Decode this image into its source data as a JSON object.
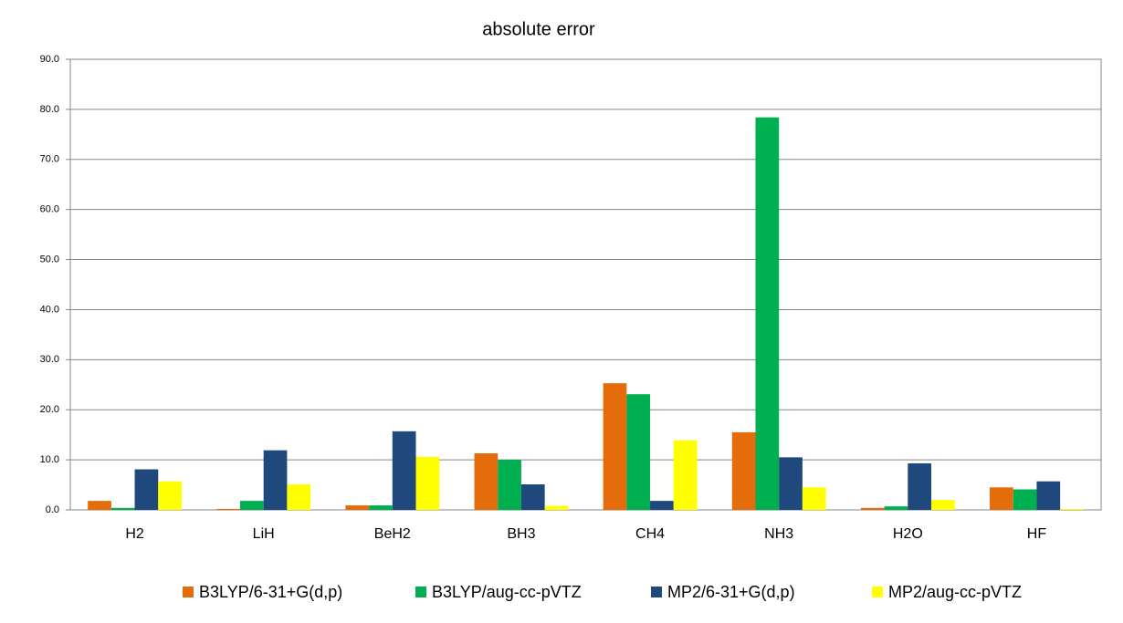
{
  "chart_data": {
    "type": "bar",
    "title": "absolute error",
    "categories": [
      "H2",
      "LiH",
      "BeH2",
      "BH3",
      "CH4",
      "NH3",
      "H2O",
      "HF"
    ],
    "series": [
      {
        "name": "B3LYP/6-31+G(d,p)",
        "color": "#e46c0a",
        "values": [
          1.8,
          0.2,
          0.9,
          11.3,
          25.3,
          15.5,
          0.4,
          4.5
        ]
      },
      {
        "name": "B3LYP/aug-cc-pVTZ",
        "color": "#00b050",
        "values": [
          0.4,
          1.8,
          0.9,
          10.0,
          23.1,
          78.4,
          0.7,
          4.1
        ]
      },
      {
        "name": "MP2/6-31+G(d,p)",
        "color": "#1f497d",
        "values": [
          8.1,
          11.9,
          15.7,
          5.1,
          1.8,
          10.5,
          9.3,
          5.7
        ]
      },
      {
        "name": "MP2/aug-cc-pVTZ",
        "color": "#ffff00",
        "values": [
          5.7,
          5.1,
          10.6,
          0.8,
          13.9,
          4.5,
          2.0,
          0.2
        ]
      }
    ],
    "ylim": [
      0,
      90
    ],
    "yticks": [
      {
        "value": 0,
        "label": "0.0"
      },
      {
        "value": 10,
        "label": "10.0"
      },
      {
        "value": 20,
        "label": "20.0"
      },
      {
        "value": 30,
        "label": "30.0"
      },
      {
        "value": 40,
        "label": "40.0"
      },
      {
        "value": 50,
        "label": "50.0"
      },
      {
        "value": 60,
        "label": "60.0"
      },
      {
        "value": 70,
        "label": "70.0"
      },
      {
        "value": 80,
        "label": "80.0"
      },
      {
        "value": 90,
        "label": "90.0"
      }
    ],
    "grid": true
  }
}
